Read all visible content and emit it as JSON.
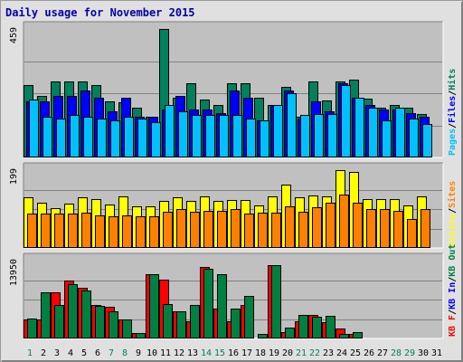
{
  "title": "Daily usage for November 2015",
  "colors": {
    "hits": "#00805c",
    "files": "#0000ff",
    "pages": "#00c0ff",
    "visits": "#ffff00",
    "sites": "#ff8000",
    "kbin": "#008040",
    "kbout": "#ff0000",
    "weekday_label": "#000000",
    "weekend_label": "#00805c",
    "frame_title": "#0000aa",
    "panel_bg": "#c0c0c0",
    "grid": "#808080"
  },
  "chart_data": [
    {
      "type": "bar",
      "panel": "hits-files-pages",
      "categories": [
        "1",
        "2",
        "3",
        "4",
        "5",
        "6",
        "7",
        "8",
        "9",
        "10",
        "11",
        "12",
        "13",
        "14",
        "15",
        "16",
        "17",
        "18",
        "19",
        "20",
        "21",
        "22",
        "23",
        "24",
        "25",
        "26",
        "27",
        "28",
        "29",
        "30",
        "31"
      ],
      "ymax_label": "459",
      "ylim": [
        0,
        459
      ],
      "legend": [
        {
          "label": "Pages",
          "color": "#00c0ff"
        },
        {
          "label": "/",
          "color": "#000000"
        },
        {
          "label": "Files",
          "color": "#0000ff"
        },
        {
          "label": "/",
          "color": "#000000"
        },
        {
          "label": "Hits",
          "color": "#00805c"
        }
      ],
      "series": [
        {
          "name": "Hits",
          "color": "#00805c",
          "values": [
            258,
            219,
            272,
            272,
            272,
            258,
            199,
            196,
            179,
            146,
            459,
            213,
            265,
            207,
            189,
            265,
            265,
            213,
            189,
            252,
            145,
            272,
            204,
            272,
            279,
            209,
            179,
            189,
            179,
            156,
            0
          ]
        },
        {
          "name": "Files",
          "color": "#0000ff",
          "values": [
            199,
            199,
            219,
            219,
            238,
            213,
            165,
            213,
            146,
            146,
            172,
            219,
            172,
            172,
            159,
            238,
            213,
            132,
            189,
            238,
            139,
            199,
            165,
            265,
            213,
            186,
            172,
            172,
            159,
            146,
            0
          ]
        },
        {
          "name": "Pages",
          "color": "#00c0ff",
          "values": [
            206,
            146,
            139,
            152,
            146,
            139,
            132,
            146,
            139,
            126,
            186,
            165,
            152,
            152,
            152,
            152,
            139,
            132,
            186,
            229,
            152,
            156,
            156,
            258,
            213,
            179,
            132,
            179,
            139,
            119,
            0
          ]
        }
      ]
    },
    {
      "type": "bar",
      "panel": "visits-sites",
      "categories": [
        "1",
        "2",
        "3",
        "4",
        "5",
        "6",
        "7",
        "8",
        "9",
        "10",
        "11",
        "12",
        "13",
        "14",
        "15",
        "16",
        "17",
        "18",
        "19",
        "20",
        "21",
        "22",
        "23",
        "24",
        "25",
        "26",
        "27",
        "28",
        "29",
        "30",
        "31"
      ],
      "ymax_label": "199",
      "ylim": [
        0,
        199
      ],
      "legend": [
        {
          "label": "Visits",
          "color": "#ffff00"
        },
        {
          "label": "/",
          "color": "#000000"
        },
        {
          "label": "Sites",
          "color": "#ff8000"
        }
      ],
      "series": [
        {
          "name": "Visits",
          "color": "#ffff00",
          "values": [
            129,
            116,
            101,
            113,
            129,
            124,
            112,
            131,
            106,
            106,
            120,
            129,
            120,
            131,
            120,
            123,
            123,
            108,
            131,
            161,
            129,
            134,
            131,
            199,
            195,
            124,
            124,
            124,
            108,
            131,
            0
          ]
        },
        {
          "name": "Sites",
          "color": "#ff8000",
          "values": [
            87,
            87,
            87,
            87,
            90,
            84,
            81,
            84,
            81,
            81,
            93,
            100,
            93,
            96,
            96,
            100,
            87,
            90,
            90,
            106,
            93,
            103,
            116,
            137,
            116,
            100,
            100,
            96,
            74,
            100,
            0
          ]
        }
      ]
    },
    {
      "type": "bar",
      "panel": "kbytes",
      "categories": [
        "1",
        "2",
        "3",
        "4",
        "5",
        "6",
        "7",
        "8",
        "9",
        "10",
        "11",
        "12",
        "13",
        "14",
        "15",
        "16",
        "17",
        "18",
        "19",
        "20",
        "21",
        "22",
        "23",
        "24",
        "25",
        "26",
        "27",
        "28",
        "29",
        "30",
        "31"
      ],
      "ymax_label": "13950",
      "ylim": [
        0,
        13950
      ],
      "legend": [
        {
          "label": "KB F",
          "color": "#ff0000"
        },
        {
          "label": "/",
          "color": "#000000"
        },
        {
          "label": "KB In",
          "color": "#0000ff"
        },
        {
          "label": "/",
          "color": "#000000"
        },
        {
          "label": "KB Out",
          "color": "#008040"
        }
      ],
      "series": [
        {
          "name": "KB Out",
          "color": "#ff0000",
          "values": [
            3330,
            3330,
            8250,
            10400,
            9060,
            6070,
            5630,
            3330,
            1010,
            11500,
            10590,
            4910,
            3050,
            12830,
            5340,
            3040,
            6070,
            0,
            13100,
            1150,
            3050,
            4220,
            2890,
            1720,
            850,
            0,
            0,
            0,
            0,
            0,
            0
          ]
        },
        {
          "name": "KB In",
          "color": "#008040",
          "values": [
            3610,
            8250,
            6070,
            9670,
            8670,
            5920,
            4900,
            3330,
            1010,
            11500,
            6210,
            4910,
            6070,
            12430,
            11500,
            5340,
            7600,
            840,
            13100,
            2020,
            4200,
            3910,
            3990,
            840,
            1150,
            0,
            0,
            0,
            0,
            0,
            0
          ]
        }
      ]
    }
  ],
  "x_labels": [
    {
      "text": "1",
      "weekend": true
    },
    {
      "text": "2",
      "weekend": false
    },
    {
      "text": "3",
      "weekend": false
    },
    {
      "text": "4",
      "weekend": false
    },
    {
      "text": "5",
      "weekend": false
    },
    {
      "text": "6",
      "weekend": false
    },
    {
      "text": "7",
      "weekend": true
    },
    {
      "text": "8",
      "weekend": true
    },
    {
      "text": "9",
      "weekend": false
    },
    {
      "text": "10",
      "weekend": false
    },
    {
      "text": "11",
      "weekend": false
    },
    {
      "text": "12",
      "weekend": false
    },
    {
      "text": "13",
      "weekend": false
    },
    {
      "text": "14",
      "weekend": true
    },
    {
      "text": "15",
      "weekend": true
    },
    {
      "text": "16",
      "weekend": false
    },
    {
      "text": "17",
      "weekend": false
    },
    {
      "text": "18",
      "weekend": false
    },
    {
      "text": "19",
      "weekend": false
    },
    {
      "text": "20",
      "weekend": false
    },
    {
      "text": "21",
      "weekend": true
    },
    {
      "text": "22",
      "weekend": true
    },
    {
      "text": "23",
      "weekend": false
    },
    {
      "text": "24",
      "weekend": false
    },
    {
      "text": "25",
      "weekend": false
    },
    {
      "text": "26",
      "weekend": false
    },
    {
      "text": "27",
      "weekend": false
    },
    {
      "text": "28",
      "weekend": true
    },
    {
      "text": "29",
      "weekend": true
    },
    {
      "text": "30",
      "weekend": false
    },
    {
      "text": "31",
      "weekend": false
    }
  ]
}
